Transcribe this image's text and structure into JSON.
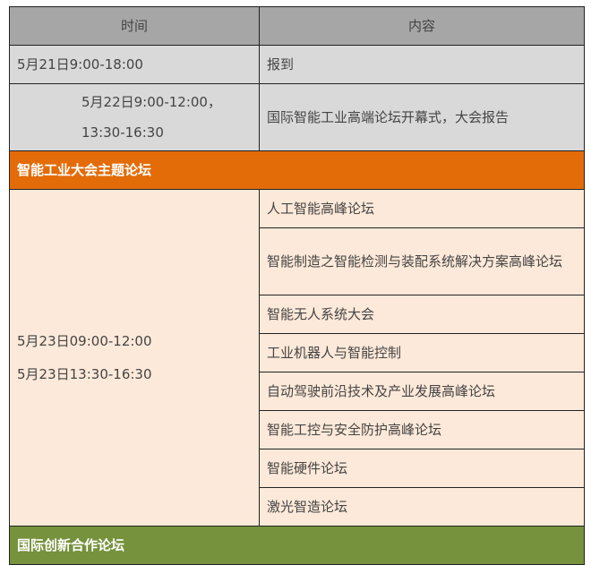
{
  "header": {
    "time": "时间",
    "content": "内容"
  },
  "rows": [
    {
      "time": "5月21日9:00-18:00",
      "content": "报到"
    },
    {
      "time_line1": "5月22日9:00-12:00，",
      "time_line2": "13:30-16:30",
      "content": "国际智能工业高端论坛开幕式，大会报告"
    }
  ],
  "section1": {
    "title": "智能工业大会主题论坛",
    "time_line1": "5月23日09:00-12:00",
    "time_line2": "5月23日13:30-16:30",
    "items": [
      "人工智能高峰论坛",
      "智能制造之智能检测与装配系统解决方案高峰论坛",
      "智能无人系统大会",
      "工业机器人与智能控制",
      "自动驾驶前沿技术及产业发展高峰论坛",
      "智能工控与安全防护高峰论坛",
      "智能硬件论坛",
      "激光智造论坛"
    ]
  },
  "section2": {
    "title": "国际创新合作论坛"
  },
  "colors": {
    "header": "#a6a6a6",
    "gray_row": "#d9d9d9",
    "orange": "#e36c09",
    "peach": "#fde9d9",
    "green": "#76923c"
  }
}
